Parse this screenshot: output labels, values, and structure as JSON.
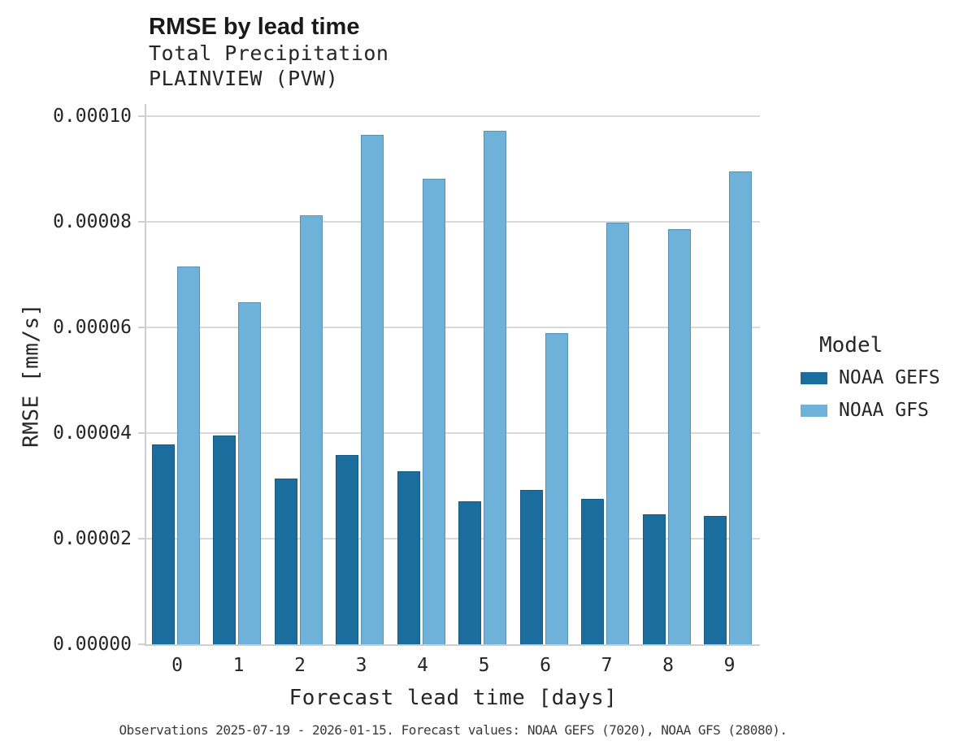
{
  "header": {
    "title": "RMSE by lead time",
    "subtitle_line1": "Total Precipitation",
    "subtitle_line2": "PLAINVIEW (PVW)"
  },
  "legend": {
    "title": "Model",
    "items": [
      {
        "label": "NOAA GEFS",
        "color": "#1b6d9e"
      },
      {
        "label": "NOAA GFS",
        "color": "#6fb2d9"
      }
    ]
  },
  "footer": {
    "caption": "Observations 2025-07-19 - 2026-01-15. Forecast values: NOAA GEFS (7020), NOAA GFS (28080)."
  },
  "colors": {
    "grid": "#d9d9d9",
    "axis": "#cfcfcf",
    "gefs_blue": "#1b6d9e",
    "gfs_light_blue": "#6fb2d9",
    "title_text": "#1a1a1a",
    "body_text": "#262626"
  },
  "chart_data": {
    "type": "bar",
    "title": "RMSE by lead time",
    "subtitle": [
      "Total Precipitation",
      "PLAINVIEW (PVW)"
    ],
    "xlabel": "Forecast lead time [days]",
    "ylabel": "RMSE [mm/s]",
    "categories": [
      "0",
      "1",
      "2",
      "3",
      "4",
      "5",
      "6",
      "7",
      "8",
      "9"
    ],
    "series": [
      {
        "name": "NOAA GEFS",
        "color": "#1b6d9e",
        "values": [
          3.79e-05,
          3.95e-05,
          3.14e-05,
          3.59e-05,
          3.28e-05,
          2.71e-05,
          2.93e-05,
          2.76e-05,
          2.46e-05,
          2.43e-05
        ]
      },
      {
        "name": "NOAA GFS",
        "color": "#6fb2d9",
        "values": [
          7.15e-05,
          6.48e-05,
          8.13e-05,
          9.65e-05,
          8.81e-05,
          9.72e-05,
          5.89e-05,
          7.99e-05,
          7.86e-05,
          8.95e-05
        ]
      }
    ],
    "ylim": [
      0,
      0.0001
    ],
    "yticks": {
      "values": [
        0,
        2e-05,
        4e-05,
        6e-05,
        8e-05,
        0.0001
      ],
      "labels": [
        "0.00000",
        "0.00002",
        "0.00004",
        "0.00006",
        "0.00008",
        "0.00010"
      ]
    },
    "grid": "horizontal",
    "legend_position": "right",
    "legend_title": "Model"
  }
}
